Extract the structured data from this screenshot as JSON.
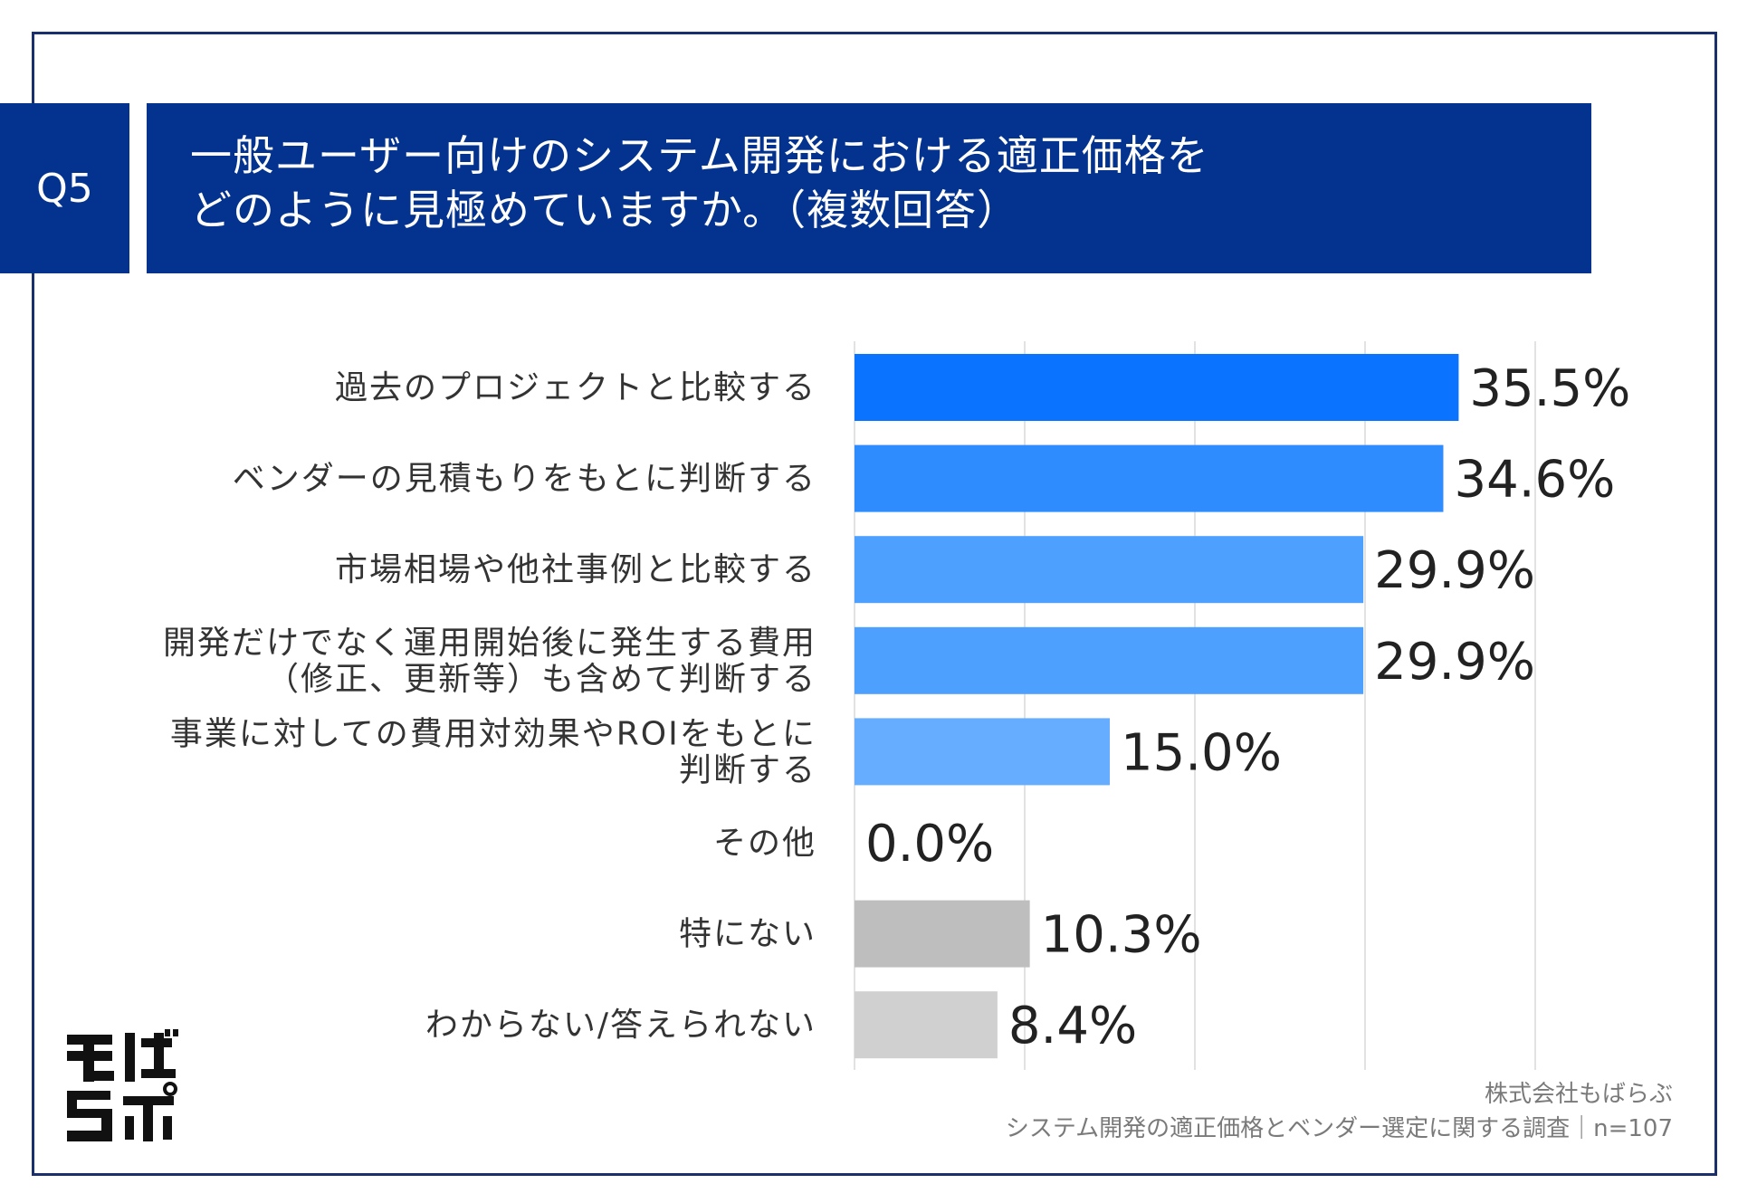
{
  "header": {
    "question_no": "Q5",
    "title_line1": "一般ユーザー向けのシステム開発における適正価格を",
    "title_line2": "どのように見極めていますか。（複数回答）"
  },
  "footer": {
    "company": "株式会社もばらぶ",
    "survey": "システム開発の適正価格とベンダー選定に関する調査｜n=107"
  },
  "logo": {
    "text": "もばらぶ"
  },
  "chart_data": {
    "type": "bar",
    "orientation": "horizontal",
    "categories": [
      [
        "過去のプロジェクトと比較する"
      ],
      [
        "ベンダーの見積もりをもとに判断する"
      ],
      [
        "市場相場や他社事例と比較する"
      ],
      [
        "開発だけでなく運用開始後に発生する費用",
        "（修正、更新等）も含めて判断する"
      ],
      [
        "事業に対しての費用対効果やROIをもとに",
        "判断する"
      ],
      [
        "その他"
      ],
      [
        "特にない"
      ],
      [
        "わからない/答えられない"
      ]
    ],
    "values": [
      35.5,
      34.6,
      29.9,
      29.9,
      15.0,
      0.0,
      10.3,
      8.4
    ],
    "value_labels": [
      "35.5%",
      "34.6%",
      "29.9%",
      "29.9%",
      "15.0%",
      "0.0%",
      "10.3%",
      "8.4%"
    ],
    "bar_colors": [
      "#0a73ff",
      "#2f8cff",
      "#4ea0ff",
      "#4ea0ff",
      "#66adff",
      "#66adff",
      "#bebebe",
      "#d0d0d0"
    ],
    "xlim": [
      0,
      40
    ],
    "x_gridlines": [
      0,
      10,
      20,
      30,
      40
    ],
    "grid": true
  }
}
